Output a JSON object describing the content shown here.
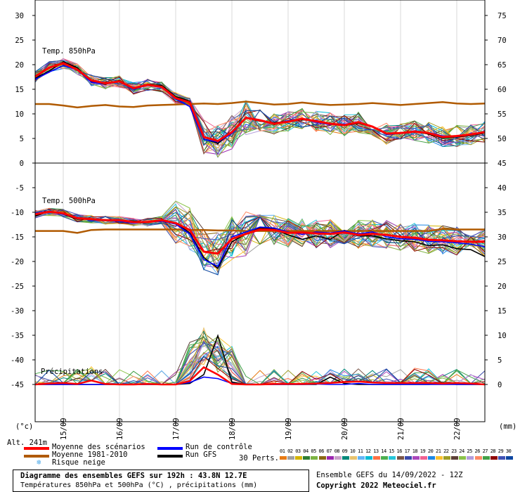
{
  "chart_data": {
    "type": "line",
    "dates": [
      "15/09",
      "16/09",
      "17/09",
      "18/09",
      "19/09",
      "20/09",
      "21/09",
      "22/09"
    ],
    "units_left": "(°c)",
    "units_right": "(mm)",
    "left_ticks": [
      30,
      25,
      20,
      15,
      10,
      5,
      0,
      -5,
      -10,
      -15,
      -20,
      -25,
      -30,
      -35,
      -40,
      -45
    ],
    "right_ticks": [
      75,
      70,
      65,
      60,
      55,
      50,
      45,
      40,
      35,
      30,
      25,
      20,
      15,
      10,
      5,
      0
    ],
    "panel_labels": {
      "t850": "Temp. 850hPa",
      "t500": "Temp. 500hPa",
      "precip": "Précipitations"
    },
    "x_hours": [
      0,
      6,
      12,
      18,
      24,
      30,
      36,
      42,
      48,
      54,
      60,
      66,
      72,
      78,
      84,
      90,
      96,
      102,
      108,
      114,
      120,
      126,
      132,
      138,
      144,
      150,
      156,
      162,
      168,
      174,
      180,
      186,
      192
    ],
    "t850": {
      "mean": [
        17.6,
        19.4,
        20.3,
        19.0,
        16.8,
        16.2,
        16.6,
        15.2,
        15.9,
        15.5,
        13.2,
        12.3,
        5.3,
        4.5,
        6.3,
        9.2,
        8.7,
        8.0,
        8.4,
        9.0,
        8.5,
        8.0,
        7.7,
        8.3,
        7.4,
        6.0,
        6.1,
        6.4,
        6.1,
        5.3,
        5.5,
        5.8,
        6.3
      ],
      "climatology": [
        12.0,
        12.0,
        11.7,
        11.3,
        11.6,
        11.8,
        11.5,
        11.4,
        11.7,
        11.8,
        11.9,
        12.0,
        12.1,
        12.0,
        12.2,
        12.5,
        12.2,
        11.9,
        12.0,
        12.3,
        12.0,
        11.8,
        11.9,
        12.0,
        12.2,
        12.0,
        11.8,
        12.0,
        12.2,
        12.4,
        12.1,
        12.0,
        12.1
      ],
      "control": [
        17.0,
        18.5,
        19.8,
        19.0,
        16.4,
        16.1,
        16.5,
        15.0,
        15.8,
        15.4,
        13.0,
        11.5,
        4.8,
        4.3,
        6.0,
        9.3,
        8.8,
        8.0,
        8.6,
        9.0,
        8.3,
        7.8,
        7.9,
        8.2,
        7.4,
        5.8,
        6.0,
        6.3,
        6.2,
        5.5,
        5.5,
        5.7,
        6.3
      ],
      "gfs": [
        17.2,
        18.7,
        20.6,
        19.4,
        16.5,
        16.0,
        16.8,
        15.1,
        16.0,
        15.8,
        13.5,
        12.6,
        4.9,
        4.0,
        6.2,
        9.2,
        8.5,
        8.2,
        8.4,
        8.8,
        8.6,
        7.9,
        7.6,
        8.1,
        7.4,
        5.9,
        6.2,
        6.4,
        5.9,
        5.1,
        5.3,
        5.6,
        6.1
      ]
    },
    "t500": {
      "mean": [
        -10.4,
        -9.9,
        -10.2,
        -11.2,
        -11.4,
        -11.6,
        -11.6,
        -12.0,
        -12.0,
        -11.6,
        -12.2,
        -13.6,
        -18.0,
        -18.4,
        -15.4,
        -14.4,
        -13.5,
        -13.6,
        -14.2,
        -14.1,
        -14.3,
        -14.4,
        -14.1,
        -14.6,
        -14.4,
        -14.6,
        -15.0,
        -15.2,
        -15.6,
        -15.7,
        -15.9,
        -16.0,
        -16.0
      ],
      "climatology": [
        -13.8,
        -13.8,
        -13.8,
        -14.2,
        -13.6,
        -13.5,
        -13.5,
        -13.5,
        -13.5,
        -13.5,
        -13.5,
        -13.6,
        -13.6,
        -13.7,
        -13.7,
        -13.8,
        -13.8,
        -13.8,
        -13.8,
        -13.8,
        -13.8,
        -13.8,
        -13.8,
        -13.8,
        -13.8,
        -13.8,
        -13.8,
        -13.8,
        -13.8,
        -13.4,
        -13.5,
        -13.5,
        -13.5
      ],
      "control": [
        -10.2,
        -9.8,
        -10.4,
        -11.0,
        -11.6,
        -11.7,
        -11.8,
        -12.2,
        -12.0,
        -11.8,
        -12.4,
        -14.4,
        -19.6,
        -21.0,
        -15.0,
        -14.0,
        -13.0,
        -13.2,
        -14.0,
        -14.5,
        -14.0,
        -14.2,
        -13.8,
        -14.4,
        -14.0,
        -15.0,
        -15.4,
        -15.5,
        -15.9,
        -16.0,
        -16.2,
        -16.5,
        -17.0
      ],
      "gfs": [
        -10.8,
        -9.8,
        -10.4,
        -11.4,
        -11.4,
        -11.5,
        -11.7,
        -11.8,
        -12.1,
        -11.5,
        -12.2,
        -14.2,
        -19.2,
        -21.4,
        -16.0,
        -14.4,
        -13.2,
        -13.4,
        -14.6,
        -15.5,
        -14.8,
        -15.5,
        -13.7,
        -14.8,
        -14.8,
        -15.4,
        -15.8,
        -16.0,
        -16.8,
        -16.6,
        -17.4,
        -17.6,
        -19.0
      ]
    },
    "precip": {
      "mean": [
        0,
        0.2,
        0.3,
        0.1,
        0.8,
        0.1,
        0,
        0,
        0.1,
        0,
        0,
        0.7,
        3.5,
        2.0,
        0.1,
        0,
        0,
        0.1,
        0.1,
        0.1,
        0.2,
        0.3,
        0.5,
        0.6,
        0.4,
        0.3,
        0.3,
        0.3,
        0.3,
        0.2,
        0.3,
        0.2,
        0
      ],
      "control": [
        0,
        0,
        0,
        0,
        0,
        0,
        0,
        0,
        0,
        0,
        0,
        0.4,
        1.5,
        1.2,
        0.2,
        0,
        0,
        0,
        0,
        0,
        0.1,
        0,
        0,
        0.2,
        0,
        0,
        0,
        0,
        0,
        0,
        0,
        0,
        0
      ],
      "gfs": [
        0,
        0,
        0,
        0,
        0,
        0,
        0,
        0,
        0,
        0,
        0,
        0.2,
        2.0,
        9.9,
        0.5,
        0,
        0,
        0,
        0,
        0,
        0,
        1.5,
        0.2,
        0,
        0,
        0,
        0,
        0,
        0,
        0.3,
        0,
        0,
        0
      ]
    },
    "members": [
      "01",
      "02",
      "03",
      "04",
      "05",
      "06",
      "07",
      "08",
      "09",
      "10",
      "11",
      "12",
      "13",
      "14",
      "15",
      "16",
      "17",
      "18",
      "19",
      "20",
      "21",
      "22",
      "23",
      "24",
      "25",
      "26",
      "27",
      "28",
      "29",
      "30"
    ],
    "member_colors": [
      "#e87a14",
      "#a0a0a0",
      "#d4b400",
      "#2e7d32",
      "#7cb342",
      "#8b6914",
      "#9c27b0",
      "#c8a2c8",
      "#00897b",
      "#e8c36e",
      "#64b5f6",
      "#00bcd4",
      "#ff7043",
      "#4caf50",
      "#26c6da",
      "#795548",
      "#3949ab",
      "#ab47bc",
      "#f06292",
      "#1e88e5",
      "#fbc02d",
      "#9e9d24",
      "#5d4037",
      "#8bc34a",
      "#b39ddb",
      "#ff8a65",
      "#43a047",
      "#8e0000",
      "#3f51b5",
      "#0d47a1"
    ]
  },
  "legend": {
    "altitude": "Alt. 241m",
    "mean_label": "Moyenne des scénarios",
    "clim_label": "Moyenne 1981-2010",
    "snow_label": "Risque neige",
    "control_label": "Run de contrôle",
    "gfs_label": "Run GFS",
    "perts_label": "30 Perts.",
    "title_line": "Diagramme des ensembles GEFS sur 192h : 43.8N 12.7E",
    "subtitle_line": "Températures 850hPa et 500hPa (°C) , précipitations (mm)",
    "run_label": "Ensemble GEFS du 14/09/2022 - 12Z",
    "copyright": "Copyright 2022 Meteociel.fr"
  },
  "colors": {
    "mean": "#ff0000",
    "climatology": "#b05a00",
    "control": "#0000ff",
    "gfs": "#000000",
    "snow": "#4aa8e8"
  }
}
